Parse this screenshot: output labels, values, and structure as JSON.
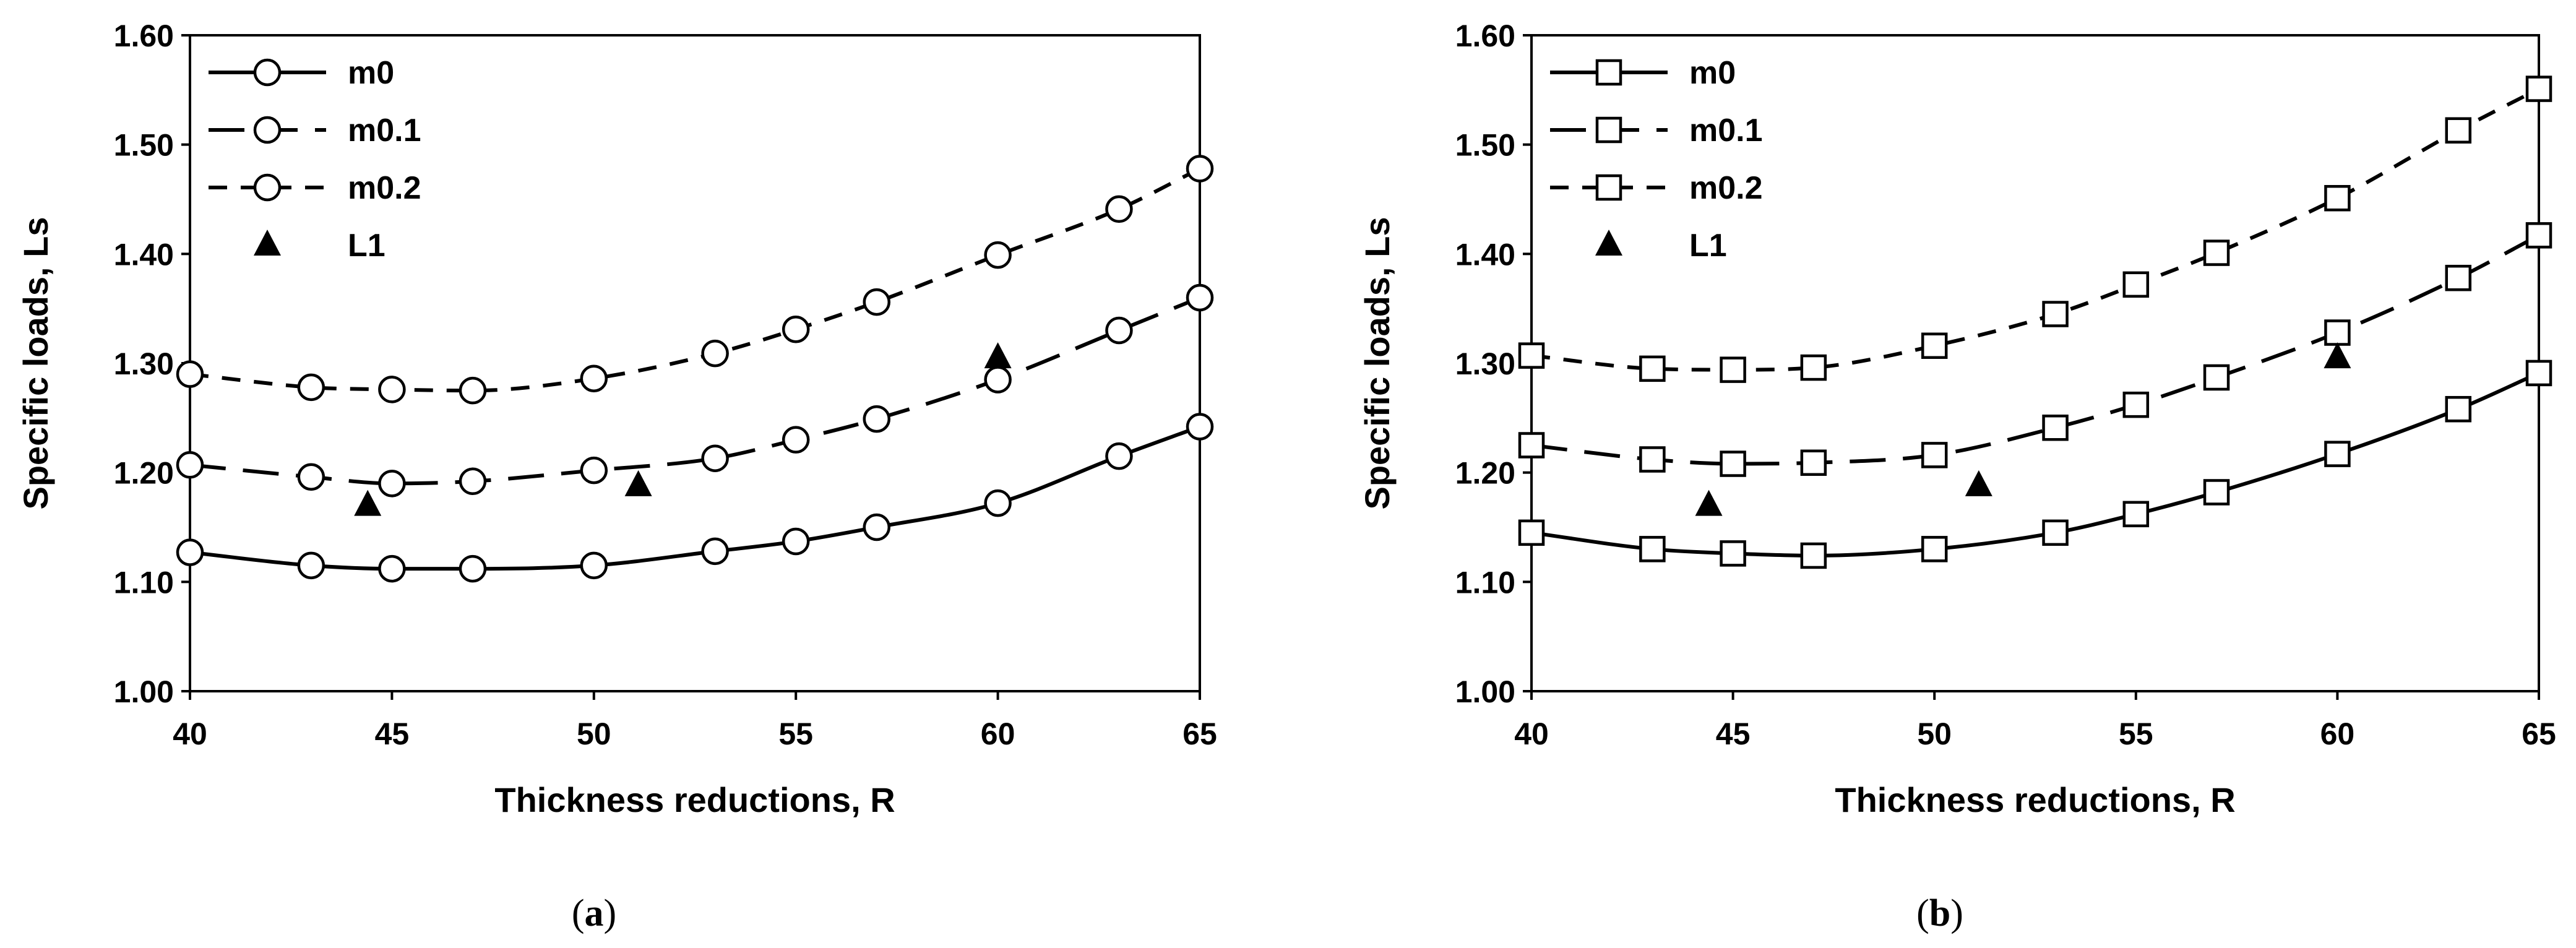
{
  "chart_data": [
    {
      "panel": "a",
      "type": "line",
      "marker": "circle",
      "xlabel": "Thickness reductions, R",
      "ylabel": "Specific loads, Ls",
      "xlim": [
        40,
        65
      ],
      "ylim": [
        1.0,
        1.6
      ],
      "x_ticks": [
        "40",
        "45",
        "50",
        "55",
        "60",
        "65"
      ],
      "y_ticks": [
        "1.00",
        "1.10",
        "1.20",
        "1.30",
        "1.40",
        "1.50",
        "1.60"
      ],
      "legend_position": "top-left",
      "caption": {
        "open": "(",
        "letter": "a",
        "close": ")"
      },
      "series": [
        {
          "name": "m0",
          "style": "solid",
          "x": [
            40,
            43,
            45,
            47,
            50,
            53,
            55,
            57,
            60,
            63,
            65
          ],
          "y": [
            1.127,
            1.115,
            1.112,
            1.112,
            1.115,
            1.128,
            1.137,
            1.15,
            1.172,
            1.215,
            1.242
          ]
        },
        {
          "name": "m0.1",
          "style": "long-dash",
          "x": [
            40,
            43,
            45,
            47,
            50,
            53,
            55,
            57,
            60,
            63,
            65
          ],
          "y": [
            1.207,
            1.196,
            1.19,
            1.192,
            1.202,
            1.213,
            1.23,
            1.249,
            1.285,
            1.33,
            1.36
          ]
        },
        {
          "name": "m0.2",
          "style": "short-dash",
          "x": [
            40,
            43,
            45,
            47,
            50,
            53,
            55,
            57,
            60,
            63,
            65
          ],
          "y": [
            1.29,
            1.278,
            1.276,
            1.275,
            1.286,
            1.309,
            1.331,
            1.356,
            1.399,
            1.441,
            1.478
          ]
        },
        {
          "name": "L1",
          "style": "markers",
          "x": [
            44.4,
            51.1,
            60.0
          ],
          "y": [
            1.17,
            1.188,
            1.305
          ]
        }
      ]
    },
    {
      "panel": "b",
      "type": "line",
      "marker": "square",
      "xlabel": "Thickness reductions, R",
      "ylabel": "Specific loads, Ls",
      "xlim": [
        40,
        65
      ],
      "ylim": [
        1.0,
        1.6
      ],
      "x_ticks": [
        "40",
        "45",
        "50",
        "55",
        "60",
        "65"
      ],
      "y_ticks": [
        "1.00",
        "1.10",
        "1.20",
        "1.30",
        "1.40",
        "1.50",
        "1.60"
      ],
      "legend_position": "top-left",
      "caption": {
        "open": "(",
        "letter": "b",
        "close": ")"
      },
      "series": [
        {
          "name": "m0",
          "style": "solid",
          "x": [
            40,
            43,
            45,
            47,
            50,
            53,
            55,
            57,
            60,
            63,
            65
          ],
          "y": [
            1.145,
            1.13,
            1.126,
            1.124,
            1.13,
            1.145,
            1.162,
            1.182,
            1.217,
            1.258,
            1.291
          ]
        },
        {
          "name": "m0.1",
          "style": "long-dash",
          "x": [
            40,
            43,
            45,
            47,
            50,
            53,
            55,
            57,
            60,
            63,
            65
          ],
          "y": [
            1.225,
            1.212,
            1.208,
            1.209,
            1.216,
            1.241,
            1.262,
            1.287,
            1.328,
            1.378,
            1.417
          ]
        },
        {
          "name": "m0.2",
          "style": "short-dash",
          "x": [
            40,
            43,
            45,
            47,
            50,
            53,
            55,
            57,
            60,
            63,
            65
          ],
          "y": [
            1.307,
            1.295,
            1.294,
            1.296,
            1.316,
            1.345,
            1.372,
            1.401,
            1.451,
            1.513,
            1.551
          ]
        },
        {
          "name": "L1",
          "style": "markers",
          "x": [
            44.4,
            51.1,
            60.0
          ],
          "y": [
            1.17,
            1.188,
            1.305
          ]
        }
      ]
    }
  ]
}
